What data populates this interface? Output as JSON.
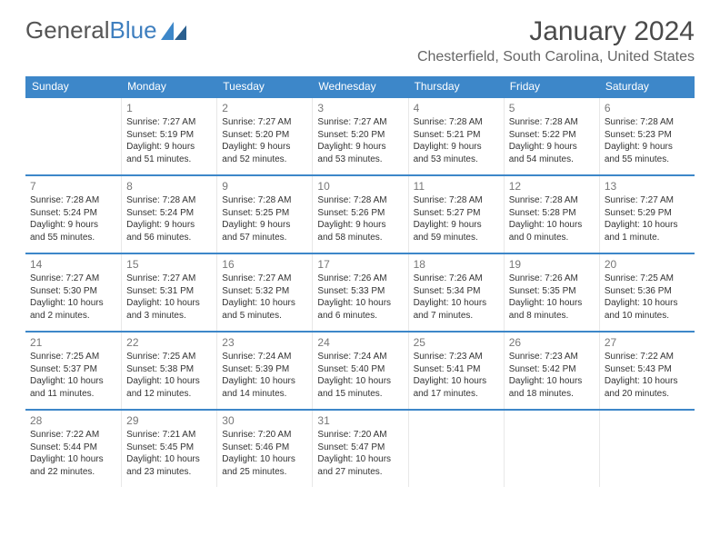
{
  "brand": {
    "part1": "General",
    "part2": "Blue"
  },
  "title": "January 2024",
  "location": "Chesterfield, South Carolina, United States",
  "colors": {
    "header_bg": "#3d87c9",
    "header_text": "#ffffff",
    "divider": "#3d87c9",
    "cell_border": "#e8e8e8",
    "text": "#333333",
    "muted": "#777777"
  },
  "weekdays": [
    "Sunday",
    "Monday",
    "Tuesday",
    "Wednesday",
    "Thursday",
    "Friday",
    "Saturday"
  ],
  "weeks": [
    [
      null,
      {
        "n": "1",
        "sr": "Sunrise: 7:27 AM",
        "ss": "Sunset: 5:19 PM",
        "d1": "Daylight: 9 hours",
        "d2": "and 51 minutes."
      },
      {
        "n": "2",
        "sr": "Sunrise: 7:27 AM",
        "ss": "Sunset: 5:20 PM",
        "d1": "Daylight: 9 hours",
        "d2": "and 52 minutes."
      },
      {
        "n": "3",
        "sr": "Sunrise: 7:27 AM",
        "ss": "Sunset: 5:20 PM",
        "d1": "Daylight: 9 hours",
        "d2": "and 53 minutes."
      },
      {
        "n": "4",
        "sr": "Sunrise: 7:28 AM",
        "ss": "Sunset: 5:21 PM",
        "d1": "Daylight: 9 hours",
        "d2": "and 53 minutes."
      },
      {
        "n": "5",
        "sr": "Sunrise: 7:28 AM",
        "ss": "Sunset: 5:22 PM",
        "d1": "Daylight: 9 hours",
        "d2": "and 54 minutes."
      },
      {
        "n": "6",
        "sr": "Sunrise: 7:28 AM",
        "ss": "Sunset: 5:23 PM",
        "d1": "Daylight: 9 hours",
        "d2": "and 55 minutes."
      }
    ],
    [
      {
        "n": "7",
        "sr": "Sunrise: 7:28 AM",
        "ss": "Sunset: 5:24 PM",
        "d1": "Daylight: 9 hours",
        "d2": "and 55 minutes."
      },
      {
        "n": "8",
        "sr": "Sunrise: 7:28 AM",
        "ss": "Sunset: 5:24 PM",
        "d1": "Daylight: 9 hours",
        "d2": "and 56 minutes."
      },
      {
        "n": "9",
        "sr": "Sunrise: 7:28 AM",
        "ss": "Sunset: 5:25 PM",
        "d1": "Daylight: 9 hours",
        "d2": "and 57 minutes."
      },
      {
        "n": "10",
        "sr": "Sunrise: 7:28 AM",
        "ss": "Sunset: 5:26 PM",
        "d1": "Daylight: 9 hours",
        "d2": "and 58 minutes."
      },
      {
        "n": "11",
        "sr": "Sunrise: 7:28 AM",
        "ss": "Sunset: 5:27 PM",
        "d1": "Daylight: 9 hours",
        "d2": "and 59 minutes."
      },
      {
        "n": "12",
        "sr": "Sunrise: 7:28 AM",
        "ss": "Sunset: 5:28 PM",
        "d1": "Daylight: 10 hours",
        "d2": "and 0 minutes."
      },
      {
        "n": "13",
        "sr": "Sunrise: 7:27 AM",
        "ss": "Sunset: 5:29 PM",
        "d1": "Daylight: 10 hours",
        "d2": "and 1 minute."
      }
    ],
    [
      {
        "n": "14",
        "sr": "Sunrise: 7:27 AM",
        "ss": "Sunset: 5:30 PM",
        "d1": "Daylight: 10 hours",
        "d2": "and 2 minutes."
      },
      {
        "n": "15",
        "sr": "Sunrise: 7:27 AM",
        "ss": "Sunset: 5:31 PM",
        "d1": "Daylight: 10 hours",
        "d2": "and 3 minutes."
      },
      {
        "n": "16",
        "sr": "Sunrise: 7:27 AM",
        "ss": "Sunset: 5:32 PM",
        "d1": "Daylight: 10 hours",
        "d2": "and 5 minutes."
      },
      {
        "n": "17",
        "sr": "Sunrise: 7:26 AM",
        "ss": "Sunset: 5:33 PM",
        "d1": "Daylight: 10 hours",
        "d2": "and 6 minutes."
      },
      {
        "n": "18",
        "sr": "Sunrise: 7:26 AM",
        "ss": "Sunset: 5:34 PM",
        "d1": "Daylight: 10 hours",
        "d2": "and 7 minutes."
      },
      {
        "n": "19",
        "sr": "Sunrise: 7:26 AM",
        "ss": "Sunset: 5:35 PM",
        "d1": "Daylight: 10 hours",
        "d2": "and 8 minutes."
      },
      {
        "n": "20",
        "sr": "Sunrise: 7:25 AM",
        "ss": "Sunset: 5:36 PM",
        "d1": "Daylight: 10 hours",
        "d2": "and 10 minutes."
      }
    ],
    [
      {
        "n": "21",
        "sr": "Sunrise: 7:25 AM",
        "ss": "Sunset: 5:37 PM",
        "d1": "Daylight: 10 hours",
        "d2": "and 11 minutes."
      },
      {
        "n": "22",
        "sr": "Sunrise: 7:25 AM",
        "ss": "Sunset: 5:38 PM",
        "d1": "Daylight: 10 hours",
        "d2": "and 12 minutes."
      },
      {
        "n": "23",
        "sr": "Sunrise: 7:24 AM",
        "ss": "Sunset: 5:39 PM",
        "d1": "Daylight: 10 hours",
        "d2": "and 14 minutes."
      },
      {
        "n": "24",
        "sr": "Sunrise: 7:24 AM",
        "ss": "Sunset: 5:40 PM",
        "d1": "Daylight: 10 hours",
        "d2": "and 15 minutes."
      },
      {
        "n": "25",
        "sr": "Sunrise: 7:23 AM",
        "ss": "Sunset: 5:41 PM",
        "d1": "Daylight: 10 hours",
        "d2": "and 17 minutes."
      },
      {
        "n": "26",
        "sr": "Sunrise: 7:23 AM",
        "ss": "Sunset: 5:42 PM",
        "d1": "Daylight: 10 hours",
        "d2": "and 18 minutes."
      },
      {
        "n": "27",
        "sr": "Sunrise: 7:22 AM",
        "ss": "Sunset: 5:43 PM",
        "d1": "Daylight: 10 hours",
        "d2": "and 20 minutes."
      }
    ],
    [
      {
        "n": "28",
        "sr": "Sunrise: 7:22 AM",
        "ss": "Sunset: 5:44 PM",
        "d1": "Daylight: 10 hours",
        "d2": "and 22 minutes."
      },
      {
        "n": "29",
        "sr": "Sunrise: 7:21 AM",
        "ss": "Sunset: 5:45 PM",
        "d1": "Daylight: 10 hours",
        "d2": "and 23 minutes."
      },
      {
        "n": "30",
        "sr": "Sunrise: 7:20 AM",
        "ss": "Sunset: 5:46 PM",
        "d1": "Daylight: 10 hours",
        "d2": "and 25 minutes."
      },
      {
        "n": "31",
        "sr": "Sunrise: 7:20 AM",
        "ss": "Sunset: 5:47 PM",
        "d1": "Daylight: 10 hours",
        "d2": "and 27 minutes."
      },
      null,
      null,
      null
    ]
  ]
}
